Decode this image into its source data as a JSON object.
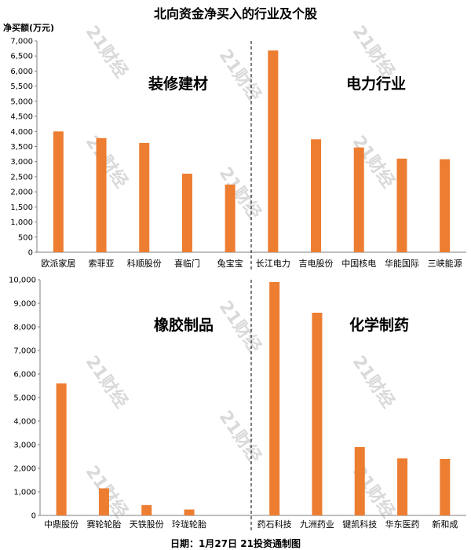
{
  "title": "北向资金净买入的行业及个股",
  "y_axis_label": "净买额(万元)",
  "footer": "日期：1月27日 21投资通制图",
  "watermark": "21财经",
  "colors": {
    "bar": "#ed7d31",
    "axis": "#808080",
    "divider": "#000000"
  },
  "chart_data": [
    {
      "type": "bar",
      "ylim": [
        0,
        7000
      ],
      "ytick_step": 500,
      "groups": [
        {
          "label": "装修建材",
          "categories": [
            "欧派家居",
            "索菲亚",
            "科顺股份",
            "喜临门",
            "兔宝宝"
          ],
          "values": [
            4000,
            3780,
            3620,
            2600,
            2240
          ]
        },
        {
          "label": "电力行业",
          "categories": [
            "长江电力",
            "吉电股份",
            "中国核电",
            "华能国际",
            "三峡能源"
          ],
          "values": [
            6680,
            3740,
            3470,
            3100,
            3080
          ]
        }
      ]
    },
    {
      "type": "bar",
      "ylim": [
        0,
        10000
      ],
      "ytick_step": 1000,
      "groups": [
        {
          "label": "橡胶制品",
          "categories": [
            "中鼎股份",
            "赛轮轮胎",
            "天铁股份",
            "玲珑轮胎",
            ""
          ],
          "values": [
            5600,
            1150,
            440,
            250,
            null
          ]
        },
        {
          "label": "化学制药",
          "categories": [
            "药石科技",
            "九洲药业",
            "键凯科技",
            "华东医药",
            "新和成"
          ],
          "values": [
            9900,
            8600,
            2900,
            2420,
            2400
          ]
        }
      ]
    }
  ]
}
